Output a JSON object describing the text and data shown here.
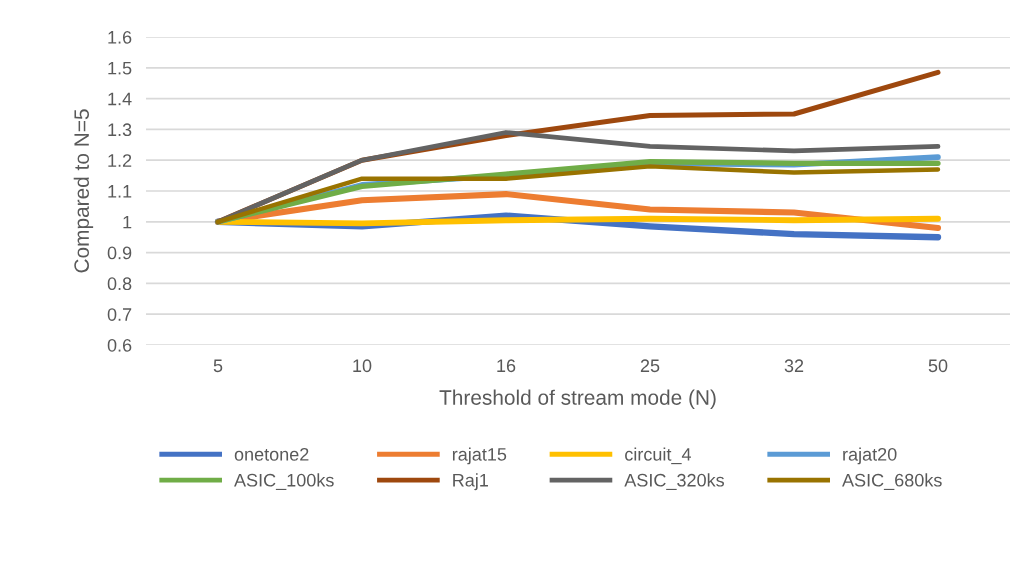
{
  "chart_data": {
    "type": "line",
    "xlabel": "Threshold of stream mode (N)",
    "ylabel": "Compared to N=5",
    "categories": [
      "5",
      "10",
      "16",
      "25",
      "32",
      "50"
    ],
    "ylim": [
      0.6,
      1.6
    ],
    "yticks": [
      {
        "value": 0.6,
        "label": "0.6"
      },
      {
        "value": 0.7,
        "label": "0.7"
      },
      {
        "value": 0.8,
        "label": "0.8"
      },
      {
        "value": 0.9,
        "label": "0.9"
      },
      {
        "value": 1,
        "label": "1"
      },
      {
        "value": 1.1,
        "label": "1.1"
      },
      {
        "value": 1.2,
        "label": "1.2"
      },
      {
        "value": 1.3,
        "label": "1.3"
      },
      {
        "value": 1.4,
        "label": "1.4"
      },
      {
        "value": 1.5,
        "label": "1.5"
      },
      {
        "value": 1.6,
        "label": "1.6"
      }
    ],
    "grid": "y",
    "legend": "bottom",
    "marker": "none",
    "line_style": "solid",
    "series": [
      {
        "name": "onetone2",
        "color": "#4472c4",
        "values": [
          1,
          0.985,
          1.02,
          0.985,
          0.96,
          0.95
        ]
      },
      {
        "name": "rajat15",
        "color": "#ed7d31",
        "values": [
          1,
          1.07,
          1.09,
          1.04,
          1.03,
          0.98
        ]
      },
      {
        "name": "circuit_4",
        "color": "#ffc000",
        "values": [
          1,
          0.995,
          1.005,
          1.01,
          1.005,
          1.01
        ]
      },
      {
        "name": "rajat20",
        "color": "#5b9bd5",
        "values": [
          1,
          1.12,
          1.15,
          1.19,
          1.185,
          1.21
        ]
      },
      {
        "name": "ASIC_100ks",
        "color": "#70ad47",
        "values": [
          1,
          1.115,
          1.155,
          1.195,
          1.19,
          1.19
        ]
      },
      {
        "name": "Raj1",
        "color": "#9e480e",
        "values": [
          1,
          1.2,
          1.28,
          1.345,
          1.35,
          1.485
        ]
      },
      {
        "name": "ASIC_320ks",
        "color": "#636363",
        "values": [
          1,
          1.2,
          1.29,
          1.245,
          1.23,
          1.245
        ]
      },
      {
        "name": "ASIC_680ks",
        "color": "#997300",
        "values": [
          1,
          1.14,
          1.14,
          1.18,
          1.16,
          1.17
        ]
      }
    ]
  }
}
